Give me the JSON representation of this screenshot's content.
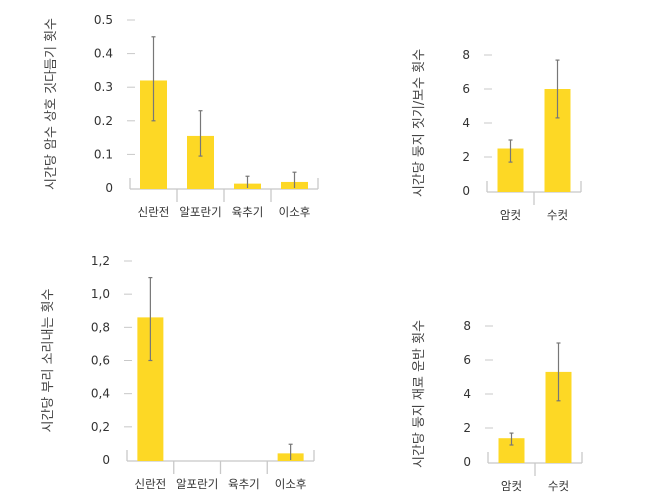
{
  "colors": {
    "bar": "#FDD825",
    "axis": "#C8C8C8",
    "error": "#777777"
  },
  "chart_data": [
    {
      "type": "bar",
      "ylabel": "시간당 암수 상호 깃다듬기 횟수",
      "categories": [
        "신란전",
        "알포란기",
        "육추기",
        "이소후"
      ],
      "values": [
        0.32,
        0.155,
        0.013,
        0.018
      ],
      "error_low": [
        0.2,
        0.095,
        0,
        0
      ],
      "error_high": [
        0.45,
        0.23,
        0.035,
        0.047
      ],
      "ylim": [
        0,
        0.5
      ],
      "yticks": [
        "0",
        "0.1",
        "0.2",
        "0.3",
        "0.4",
        "0.5"
      ],
      "grid": false
    },
    {
      "type": "bar",
      "ylabel": "시간당 둥지 짓기/보수 횟수",
      "categories": [
        "암컷",
        "수컷"
      ],
      "values": [
        2.5,
        6.0
      ],
      "error_low": [
        1.7,
        4.3
      ],
      "error_high": [
        3.0,
        7.7
      ],
      "ylim": [
        0,
        8
      ],
      "yticks": [
        "0",
        "2",
        "4",
        "6",
        "8"
      ],
      "grid": false
    },
    {
      "type": "bar",
      "ylabel": "시간당 부리 소리내는 횟수",
      "categories": [
        "신란전",
        "알포란기",
        "육추기",
        "이소후"
      ],
      "values": [
        0.86,
        0,
        0,
        0.04
      ],
      "error_low": [
        0.6,
        null,
        null,
        0
      ],
      "error_high": [
        1.1,
        null,
        null,
        0.095
      ],
      "ylim": [
        0,
        1.2
      ],
      "yticks": [
        "0",
        "0,2",
        "0,4",
        "0,6",
        "0,8",
        "1,0",
        "1,2"
      ],
      "grid": false
    },
    {
      "type": "bar",
      "ylabel": "시간당 둥지 재료 운반 횟수",
      "categories": [
        "암컷",
        "수컷"
      ],
      "values": [
        1.4,
        5.3
      ],
      "error_low": [
        1.0,
        3.6
      ],
      "error_high": [
        1.7,
        7.0
      ],
      "ylim": [
        0,
        8
      ],
      "yticks": [
        "0",
        "2",
        "4",
        "6",
        "8"
      ],
      "grid": false
    }
  ]
}
